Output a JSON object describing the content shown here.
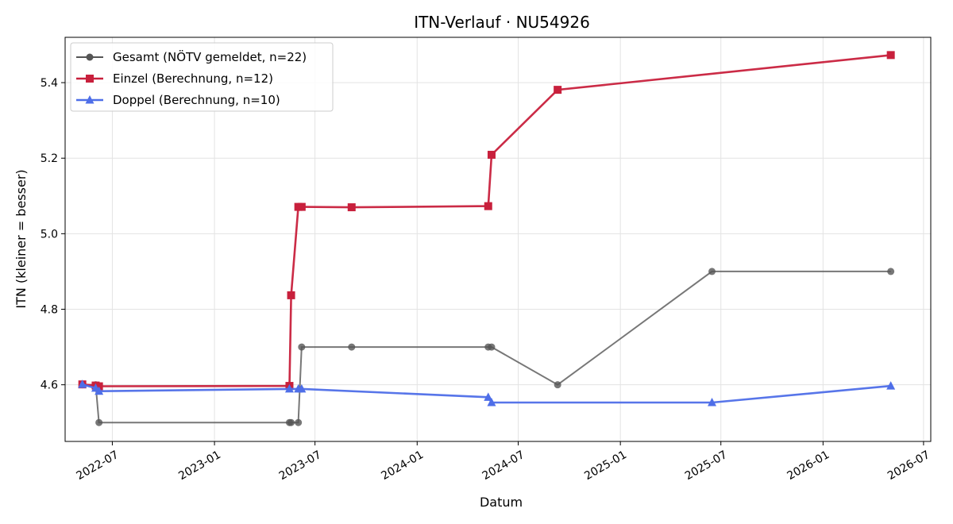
{
  "chart_data": {
    "type": "line",
    "title": "ITN-Verlauf · NU54926",
    "xlabel": "Datum",
    "ylabel": "ITN  (kleiner = besser)",
    "x_type": "date",
    "xlim": [
      "2022-04-07",
      "2026-07-14"
    ],
    "ylim": [
      4.45,
      5.52
    ],
    "x_ticks": [
      "2022-07-01",
      "2023-01-01",
      "2023-07-01",
      "2024-01-01",
      "2024-07-01",
      "2025-01-01",
      "2025-07-01",
      "2026-01-01",
      "2026-07-01"
    ],
    "x_tick_labels": [
      "2022-07",
      "2023-01",
      "2023-07",
      "2024-01",
      "2024-07",
      "2025-01",
      "2025-07",
      "2026-01",
      "2026-07"
    ],
    "y_ticks": [
      4.6,
      4.8,
      5.0,
      5.2,
      5.4
    ],
    "y_tick_labels": [
      "4.6",
      "4.8",
      "5.0",
      "5.2",
      "5.4"
    ],
    "grid": true,
    "legend_position": "top-left",
    "series": [
      {
        "name": "Gesamt (NÖTV gemeldet, n=22)",
        "color": "#555555",
        "marker": "circle",
        "points": [
          [
            "2022-05-08",
            4.6
          ],
          [
            "2022-06-01",
            4.6
          ],
          [
            "2022-06-07",
            4.5
          ],
          [
            "2023-05-16",
            4.5
          ],
          [
            "2023-05-19",
            4.5
          ],
          [
            "2023-06-01",
            4.5
          ],
          [
            "2023-06-07",
            4.7
          ],
          [
            "2023-09-05",
            4.7
          ],
          [
            "2024-05-08",
            4.7
          ],
          [
            "2024-05-14",
            4.7
          ],
          [
            "2024-09-10",
            4.6
          ],
          [
            "2025-06-15",
            4.9
          ],
          [
            "2026-05-03",
            4.9
          ]
        ]
      },
      {
        "name": "Einzel (Berechnung, n=12)",
        "color": "#c8203c",
        "marker": "square",
        "points": [
          [
            "2022-05-08",
            4.601
          ],
          [
            "2022-06-01",
            4.598
          ],
          [
            "2022-06-07",
            4.596
          ],
          [
            "2023-05-16",
            4.597
          ],
          [
            "2023-05-19",
            4.837
          ],
          [
            "2023-06-01",
            5.071
          ],
          [
            "2023-06-07",
            5.071
          ],
          [
            "2023-09-05",
            5.07
          ],
          [
            "2024-05-08",
            5.073
          ],
          [
            "2024-05-14",
            5.209
          ],
          [
            "2024-09-10",
            5.381
          ],
          [
            "2026-05-03",
            5.473
          ]
        ]
      },
      {
        "name": "Doppel (Berechnung, n=10)",
        "color": "#4e6ee8",
        "marker": "triangle",
        "points": [
          [
            "2022-05-08",
            4.601
          ],
          [
            "2022-06-01",
            4.591
          ],
          [
            "2022-06-07",
            4.583
          ],
          [
            "2023-05-16",
            4.589
          ],
          [
            "2023-06-01",
            4.589
          ],
          [
            "2023-06-07",
            4.589
          ],
          [
            "2024-05-08",
            4.567
          ],
          [
            "2024-05-14",
            4.553
          ],
          [
            "2025-06-15",
            4.553
          ],
          [
            "2026-05-03",
            4.597
          ]
        ]
      }
    ]
  }
}
